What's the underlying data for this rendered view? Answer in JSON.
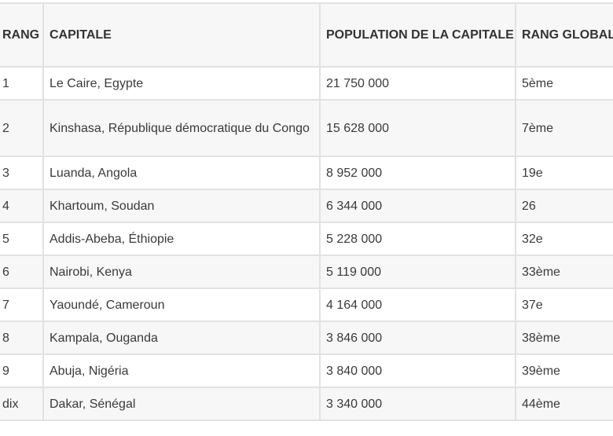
{
  "table": {
    "headers": [
      "RANG",
      "CAPITALE",
      "POPULATION DE LA CAPITALE",
      "RANG GLOBAL"
    ],
    "rows": [
      {
        "rang": "1",
        "capitale": "Le Caire, Egypte",
        "population": "21 750 000",
        "rang_global": "5ème"
      },
      {
        "rang": "2",
        "capitale": "Kinshasa, République démocratique du Congo",
        "population": "15 628 000",
        "rang_global": "7ème"
      },
      {
        "rang": "3",
        "capitale": "Luanda, Angola",
        "population": "8 952 000",
        "rang_global": "19e"
      },
      {
        "rang": "4",
        "capitale": "Khartoum, Soudan",
        "population": "6 344 000",
        "rang_global": "26"
      },
      {
        "rang": "5",
        "capitale": "Addis-Abeba, Éthiopie",
        "population": "5 228 000",
        "rang_global": "32e"
      },
      {
        "rang": "6",
        "capitale": "Nairobi, Kenya",
        "population": "5 119 000",
        "rang_global": "33ème"
      },
      {
        "rang": "7",
        "capitale": "Yaoundé, Cameroun",
        "population": "4 164 000",
        "rang_global": "37e"
      },
      {
        "rang": "8",
        "capitale": "Kampala, Ouganda",
        "population": "3 846 000",
        "rang_global": "38ème"
      },
      {
        "rang": "9",
        "capitale": "Abuja, Nigéria",
        "population": "3 840 000",
        "rang_global": "39ème"
      },
      {
        "rang": "dix",
        "capitale": "Dakar, Sénégal",
        "population": "3 340 000",
        "rang_global": "44ème"
      }
    ]
  }
}
